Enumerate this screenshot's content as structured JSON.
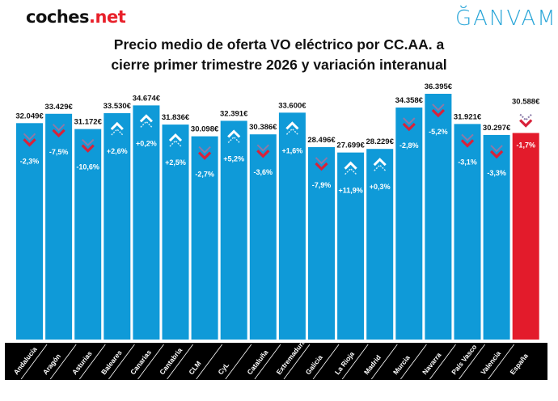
{
  "logos": {
    "left_a": "coches",
    "left_b": ".net",
    "right": "ĞANVAM"
  },
  "colors": {
    "bar": "#0f9ad8",
    "highlight": "#e31b2b",
    "label_band": "#000000",
    "up_arrow": "#ffffff",
    "down_arrow": "#d8223a",
    "down_arrow_shadow": "#8a7aa8"
  },
  "chart_data": {
    "type": "bar",
    "title": "Precio medio de oferta VO eléctrico por CC.AA. a cierre primer trimestre 2026 y variación interanual",
    "title_lines": [
      "Precio medio de oferta VO eléctrico por CC.AA. a",
      "cierre primer trimestre 2026 y variación interanual"
    ],
    "categories": [
      "Andalucía",
      "Aragón",
      "Asturias",
      "Baleares",
      "Canarias",
      "Cantabria",
      "CLM",
      "CyL",
      "Cataluña",
      "Extremadura",
      "Galicia",
      "La Rioja",
      "Madrid",
      "Murcia",
      "Navarra",
      "País Vasco",
      "Valencia",
      "España"
    ],
    "values": [
      32049,
      33429,
      31172,
      33530,
      34674,
      31836,
      30098,
      32391,
      30386,
      33600,
      28496,
      27699,
      28229,
      34358,
      36395,
      31921,
      30297,
      30588
    ],
    "value_labels": [
      "32.049€",
      "33.429€",
      "31.172€",
      "33.530€",
      "34.674€",
      "31.836€",
      "30.098€",
      "32.391€",
      "30.386€",
      "33.600€",
      "28.496€",
      "27.699€",
      "28.229€",
      "34.358€",
      "36.395€",
      "31.921€",
      "30.297€",
      "30.588€"
    ],
    "yoy_change_pct": [
      -2.3,
      -7.5,
      -10.6,
      2.6,
      0.2,
      2.5,
      -2.7,
      5.2,
      -3.6,
      1.6,
      -7.9,
      11.9,
      0.3,
      -2.8,
      -5.2,
      -3.1,
      -3.3,
      -1.7
    ],
    "yoy_labels": [
      "-2,3%",
      "-7,5%",
      "-10,6%",
      "+2,6%",
      "+0,2%",
      "+2,5%",
      "-2,7%",
      "+5,2%",
      "-3,6%",
      "+1,6%",
      "-7,9%",
      "+11,9%",
      "+0,3%",
      "-2,8%",
      "-5,2%",
      "-3,1%",
      "-3,3%",
      "-1,7%"
    ],
    "highlight_category": "España",
    "ylim": [
      0,
      36395
    ],
    "grid": false,
    "legend": "none"
  }
}
